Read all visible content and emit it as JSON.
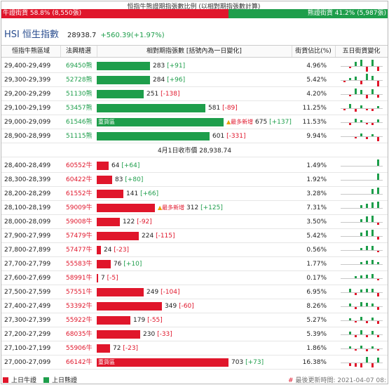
{
  "ratio": {
    "title": "恒指牛熊證期指張數比例 (以相對期指張數計算)",
    "bull_label": "牛證街貨 58.8% (8,550張)",
    "bear_label": "熊證街貨 41.2% (5,987張)",
    "bull_pct": 58.8,
    "bear_pct": 41.2,
    "bull_color": "#e0162b",
    "bear_color": "#1e9e4b"
  },
  "index": {
    "name": "HSI 恒生指數",
    "price": "28938.7",
    "change": "+560.39(+1.97%)"
  },
  "headers": {
    "range": "恒指牛熊區域",
    "code": "法興精選",
    "contracts": "相對期指張數 [括號內為一日變化]",
    "pct": "街貨佔比(%)",
    "five_day": "五日街貨變化"
  },
  "close_line": "4月1日收市價 28,938.74",
  "max_contracts": 703,
  "bear_rows": [
    {
      "range": "29,400-29,499",
      "code": "69450熊",
      "contracts": "283",
      "change": "[+91]",
      "pct": "4.96%",
      "heavy": "",
      "new": "",
      "spark": [
        0,
        -2,
        6,
        10,
        -7,
        12,
        -6
      ]
    },
    {
      "range": "29,300-29,399",
      "code": "52728熊",
      "contracts": "284",
      "change": "[+96]",
      "pct": "5.42%",
      "heavy": "",
      "new": "",
      "spark": [
        -2,
        3,
        5,
        -5,
        9,
        6,
        -8
      ]
    },
    {
      "range": "29,200-29,299",
      "code": "51130熊",
      "contracts": "251",
      "change": "[-138]",
      "pct": "4.20%",
      "heavy": "",
      "new": "",
      "spark": [
        0,
        -2,
        8,
        6,
        -5,
        7,
        -4
      ]
    },
    {
      "range": "29,100-29,199",
      "code": "53457熊",
      "contracts": "581",
      "change": "[-89]",
      "pct": "11.25%",
      "heavy": "",
      "new": "",
      "spark": [
        -2,
        6,
        -4,
        4,
        -2,
        -3,
        3
      ]
    },
    {
      "range": "29,000-29,099",
      "code": "61546熊",
      "contracts": "675",
      "change": "[+137]",
      "pct": "11.53%",
      "heavy": "重貨區",
      "new": "最多新增",
      "spark": [
        0,
        -3,
        5,
        3,
        -2,
        -3,
        4
      ]
    },
    {
      "range": "28,900-28,999",
      "code": "51115熊",
      "contracts": "601",
      "change": "[-331]",
      "pct": "9.94%",
      "heavy": "",
      "new": "",
      "spark": [
        0,
        0,
        -2,
        4,
        -3,
        3,
        -6
      ]
    }
  ],
  "bull_rows": [
    {
      "range": "28,400-28,499",
      "code": "60552牛",
      "contracts": "64",
      "change": "[+64]",
      "pct": "1.49%",
      "heavy": "",
      "new": "",
      "spark": [
        0,
        0,
        0,
        0,
        0,
        0,
        14
      ]
    },
    {
      "range": "28,300-28,399",
      "code": "60422牛",
      "contracts": "83",
      "change": "[+80]",
      "pct": "1.92%",
      "heavy": "",
      "new": "",
      "spark": [
        0,
        0,
        0,
        0,
        0,
        0,
        12
      ]
    },
    {
      "range": "28,200-28,299",
      "code": "61552牛",
      "contracts": "141",
      "change": "[+66]",
      "pct": "3.28%",
      "heavy": "",
      "new": "",
      "spark": [
        0,
        0,
        0,
        0,
        0,
        7,
        10
      ]
    },
    {
      "range": "28,100-28,199",
      "code": "59009牛",
      "contracts": "312",
      "change": "[+125]",
      "pct": "7.31%",
      "heavy": "",
      "new": "最多新增",
      "spark": [
        0,
        0,
        0,
        4,
        6,
        8,
        10
      ]
    },
    {
      "range": "28,000-28,099",
      "code": "59008牛",
      "contracts": "122",
      "change": "[-92]",
      "pct": "3.50%",
      "heavy": "",
      "new": "",
      "spark": [
        0,
        0,
        0,
        4,
        8,
        9,
        -3
      ]
    },
    {
      "range": "27,900-27,999",
      "code": "57479牛",
      "contracts": "224",
      "change": "[-115]",
      "pct": "5.42%",
      "heavy": "",
      "new": "",
      "spark": [
        0,
        0,
        0,
        5,
        8,
        9,
        -4
      ]
    },
    {
      "range": "27,800-27,899",
      "code": "57477牛",
      "contracts": "24",
      "change": "[-23]",
      "pct": "0.56%",
      "heavy": "",
      "new": "",
      "spark": [
        0,
        0,
        0,
        3,
        6,
        6,
        -2
      ]
    },
    {
      "range": "27,700-27,799",
      "code": "55583牛",
      "contracts": "76",
      "change": "[+10]",
      "pct": "1.77%",
      "heavy": "",
      "new": "",
      "spark": [
        0,
        0,
        0,
        3,
        5,
        6,
        3
      ]
    },
    {
      "range": "27,600-27,699",
      "code": "58991牛",
      "contracts": "7",
      "change": "[-5]",
      "pct": "0.17%",
      "heavy": "",
      "new": "",
      "spark": [
        0,
        0,
        3,
        4,
        5,
        6,
        -2
      ]
    },
    {
      "range": "27,500-27,599",
      "code": "57551牛",
      "contracts": "249",
      "change": "[-104]",
      "pct": "6.95%",
      "heavy": "",
      "new": "",
      "spark": [
        0,
        5,
        -3,
        4,
        5,
        5,
        -5
      ]
    },
    {
      "range": "27,400-27,499",
      "code": "53392牛",
      "contracts": "349",
      "change": "[-60]",
      "pct": "8.26%",
      "heavy": "",
      "new": "",
      "spark": [
        0,
        4,
        -3,
        6,
        5,
        4,
        -4
      ]
    },
    {
      "range": "27,300-27,399",
      "code": "55922牛",
      "contracts": "179",
      "change": "[-55]",
      "pct": "5.27%",
      "heavy": "",
      "new": "",
      "spark": [
        0,
        3,
        -2,
        5,
        -3,
        4,
        -4
      ]
    },
    {
      "range": "27,200-27,299",
      "code": "68035牛",
      "contracts": "230",
      "change": "[-33]",
      "pct": "5.39%",
      "heavy": "",
      "new": "",
      "spark": [
        0,
        4,
        -3,
        6,
        -3,
        5,
        -3
      ]
    },
    {
      "range": "27,100-27,199",
      "code": "55906牛",
      "contracts": "72",
      "change": "[-23]",
      "pct": "1.86%",
      "heavy": "",
      "new": "",
      "spark": [
        0,
        3,
        -2,
        4,
        -3,
        3,
        -2
      ]
    },
    {
      "range": "27,000-27,099",
      "code": "66142牛",
      "contracts": "703",
      "change": "[+73]",
      "pct": "16.38%",
      "heavy": "重貨區",
      "new": "",
      "spark": [
        0,
        -4,
        -5,
        -6,
        8,
        -6,
        7
      ]
    }
  ],
  "footer": {
    "legend_bull": "上日牛證",
    "legend_bear": "上日熊證",
    "updated": "最後更新時間: 2021-04-07 08:"
  }
}
